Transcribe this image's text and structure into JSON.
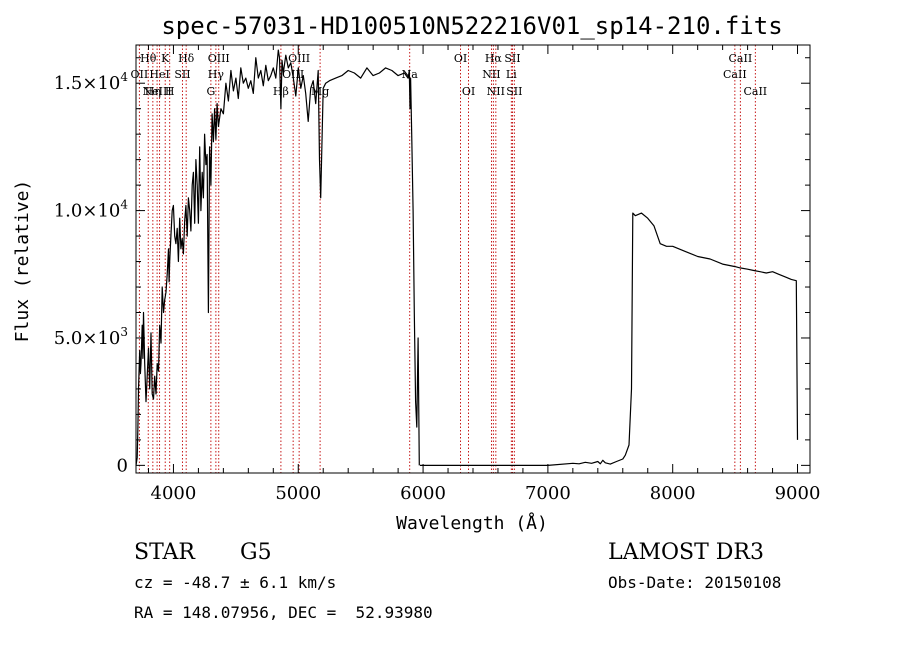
{
  "chart_data": {
    "type": "line",
    "title": "spec-57031-HD100510N522216V01_sp14-210.fits",
    "xlabel": "Wavelength (Å)",
    "ylabel": "Flux (relative)",
    "xlim": [
      3700,
      9100
    ],
    "ylim": [
      -300,
      16500
    ],
    "x_ticks": [
      4000,
      5000,
      6000,
      7000,
      8000,
      9000
    ],
    "x_tick_labels": [
      "4000",
      "5000",
      "6000",
      "7000",
      "8000",
      "9000"
    ],
    "y_ticks": [
      0,
      5000,
      10000,
      15000
    ],
    "y_tick_labels": [
      {
        "mantissa": "0",
        "exp": ""
      },
      {
        "mantissa": "5.0×10",
        "exp": "3"
      },
      {
        "mantissa": "1.0×10",
        "exp": "4"
      },
      {
        "mantissa": "1.5×10",
        "exp": "4"
      }
    ],
    "series": [
      {
        "name": "flux",
        "x": [
          3700,
          3710,
          3715,
          3720,
          3730,
          3735,
          3740,
          3750,
          3755,
          3760,
          3770,
          3780,
          3790,
          3800,
          3810,
          3820,
          3830,
          3840,
          3850,
          3860,
          3870,
          3880,
          3890,
          3900,
          3910,
          3920,
          3930,
          3940,
          3950,
          3960,
          3965,
          3970,
          3980,
          3990,
          4000,
          4010,
          4020,
          4030,
          4040,
          4050,
          4060,
          4070,
          4080,
          4090,
          4100,
          4110,
          4120,
          4130,
          4140,
          4150,
          4160,
          4170,
          4180,
          4190,
          4200,
          4210,
          4220,
          4230,
          4240,
          4250,
          4260,
          4270,
          4280,
          4290,
          4300,
          4310,
          4320,
          4330,
          4340,
          4350,
          4360,
          4380,
          4400,
          4420,
          4440,
          4460,
          4480,
          4500,
          4520,
          4540,
          4560,
          4580,
          4600,
          4620,
          4640,
          4660,
          4680,
          4700,
          4720,
          4740,
          4760,
          4780,
          4800,
          4820,
          4840,
          4850,
          4861,
          4870,
          4880,
          4900,
          4920,
          4940,
          4960,
          4980,
          5000,
          5020,
          5040,
          5060,
          5080,
          5100,
          5120,
          5140,
          5160,
          5170,
          5180,
          5200,
          5220,
          5250,
          5300,
          5350,
          5400,
          5450,
          5500,
          5550,
          5600,
          5650,
          5700,
          5750,
          5800,
          5850,
          5880,
          5890,
          5895,
          5900,
          5910,
          5920,
          5930,
          5940,
          5950,
          5960,
          5970
        ],
        "y": [
          0,
          300,
          1500,
          3000,
          4500,
          3600,
          4000,
          5500,
          4200,
          6000,
          4000,
          2500,
          3500,
          4600,
          3000,
          5200,
          2800,
          2600,
          3500,
          2800,
          4000,
          3700,
          5500,
          4800,
          7000,
          6000,
          6500,
          6800,
          7500,
          8500,
          7200,
          8000,
          9000,
          10000,
          10200,
          9000,
          8700,
          9300,
          8000,
          9700,
          8500,
          8900,
          8300,
          9600,
          10200,
          9000,
          10500,
          10000,
          9200,
          11000,
          11500,
          9500,
          12000,
          11000,
          9500,
          12500,
          10000,
          11500,
          10500,
          13000,
          11800,
          12200,
          6000,
          12500,
          11000,
          13800,
          12700,
          14000,
          12800,
          14200,
          13300,
          14000,
          13800,
          15000,
          14300,
          15500,
          14700,
          15200,
          14400,
          15600,
          15000,
          15200,
          14800,
          15100,
          14600,
          16000,
          15200,
          15500,
          14900,
          15700,
          15100,
          15300,
          15600,
          15200,
          16300,
          16000,
          14000,
          15900,
          15400,
          16100,
          15600,
          15800,
          15200,
          14500,
          15600,
          14800,
          15300,
          14600,
          13500,
          14800,
          15100,
          14200,
          15500,
          12000,
          10500,
          14800,
          15000,
          15100,
          15200,
          15300,
          15500,
          15400,
          15200,
          15600,
          15300,
          15400,
          15600,
          15500,
          15300,
          15400,
          15200,
          15500,
          14000,
          15200,
          12800,
          10000,
          6000,
          2500,
          1500,
          5000,
          0
        ]
      },
      {
        "name": "flux",
        "x": [
          5975,
          6500,
          7000,
          7200,
          7250,
          7300,
          7350,
          7400,
          7420,
          7440,
          7460,
          7500,
          7550,
          7600,
          7620,
          7650,
          7670,
          7680,
          7700,
          7750,
          7800,
          7850,
          7900,
          7950,
          8000,
          8100,
          8200,
          8300,
          8400,
          8500,
          8540,
          8600,
          8650,
          8700,
          8750,
          8800,
          8850,
          8900,
          8950,
          8990,
          9000
        ],
        "y": [
          0,
          0,
          0,
          80,
          60,
          120,
          80,
          150,
          60,
          200,
          100,
          50,
          150,
          250,
          400,
          800,
          3000,
          9900,
          9800,
          9900,
          9700,
          9400,
          8700,
          8600,
          8600,
          8400,
          8200,
          8100,
          7900,
          7800,
          7750,
          7700,
          7650,
          7600,
          7550,
          7600,
          7500,
          7400,
          7300,
          7250,
          1000
        ]
      }
    ],
    "lines": [
      {
        "x": 3727,
        "label": "OII",
        "row": 2
      },
      {
        "x": 3798,
        "label": "Hθ",
        "row": 1
      },
      {
        "x": 3835,
        "label": "Hη",
        "row": 3
      },
      {
        "x": 3869,
        "label": "NeIII",
        "row": 3
      },
      {
        "x": 3889,
        "label": "HeI",
        "row": 2
      },
      {
        "x": 3934,
        "label": "K",
        "row": 1
      },
      {
        "x": 3970,
        "label": "H",
        "row": 3
      },
      {
        "x": 4072,
        "label": "SII",
        "row": 2
      },
      {
        "x": 4102,
        "label": "Hδ",
        "row": 1
      },
      {
        "x": 4300,
        "label": "G",
        "row": 3
      },
      {
        "x": 4340,
        "label": "Hγ",
        "row": 2
      },
      {
        "x": 4363,
        "label": "OIII",
        "row": 1
      },
      {
        "x": 4861,
        "label": "Hβ",
        "row": 3
      },
      {
        "x": 4959,
        "label": "OIII",
        "row": 2
      },
      {
        "x": 5007,
        "label": "OIII",
        "row": 1
      },
      {
        "x": 5175,
        "label": "Mg",
        "row": 3
      },
      {
        "x": 5893,
        "label": "Na",
        "row": 2
      },
      {
        "x": 6300,
        "label": "OI",
        "row": 1
      },
      {
        "x": 6364,
        "label": "OI",
        "row": 3
      },
      {
        "x": 6548,
        "label": "NII",
        "row": 2
      },
      {
        "x": 6563,
        "label": "Hα",
        "row": 1
      },
      {
        "x": 6583,
        "label": "NII",
        "row": 3
      },
      {
        "x": 6707,
        "label": "Li",
        "row": 2
      },
      {
        "x": 6716,
        "label": "SII",
        "row": 1
      },
      {
        "x": 6731,
        "label": "SII",
        "row": 3
      },
      {
        "x": 8498,
        "label": "CaII",
        "row": 2
      },
      {
        "x": 8542,
        "label": "CaII",
        "row": 1
      },
      {
        "x": 8662,
        "label": "CaII",
        "row": 3
      }
    ],
    "colors": {
      "spectrum": "#000000",
      "lines": "#c00000",
      "axes": "#000000"
    }
  },
  "info": {
    "class": "STAR",
    "subclass": "G5",
    "survey": "LAMOST DR3",
    "redshift": "cz = -48.7 ± 6.1 km/s",
    "obs_date": "Obs-Date: 20150108",
    "coords": "RA = 148.07956, DEC =  52.93980"
  }
}
